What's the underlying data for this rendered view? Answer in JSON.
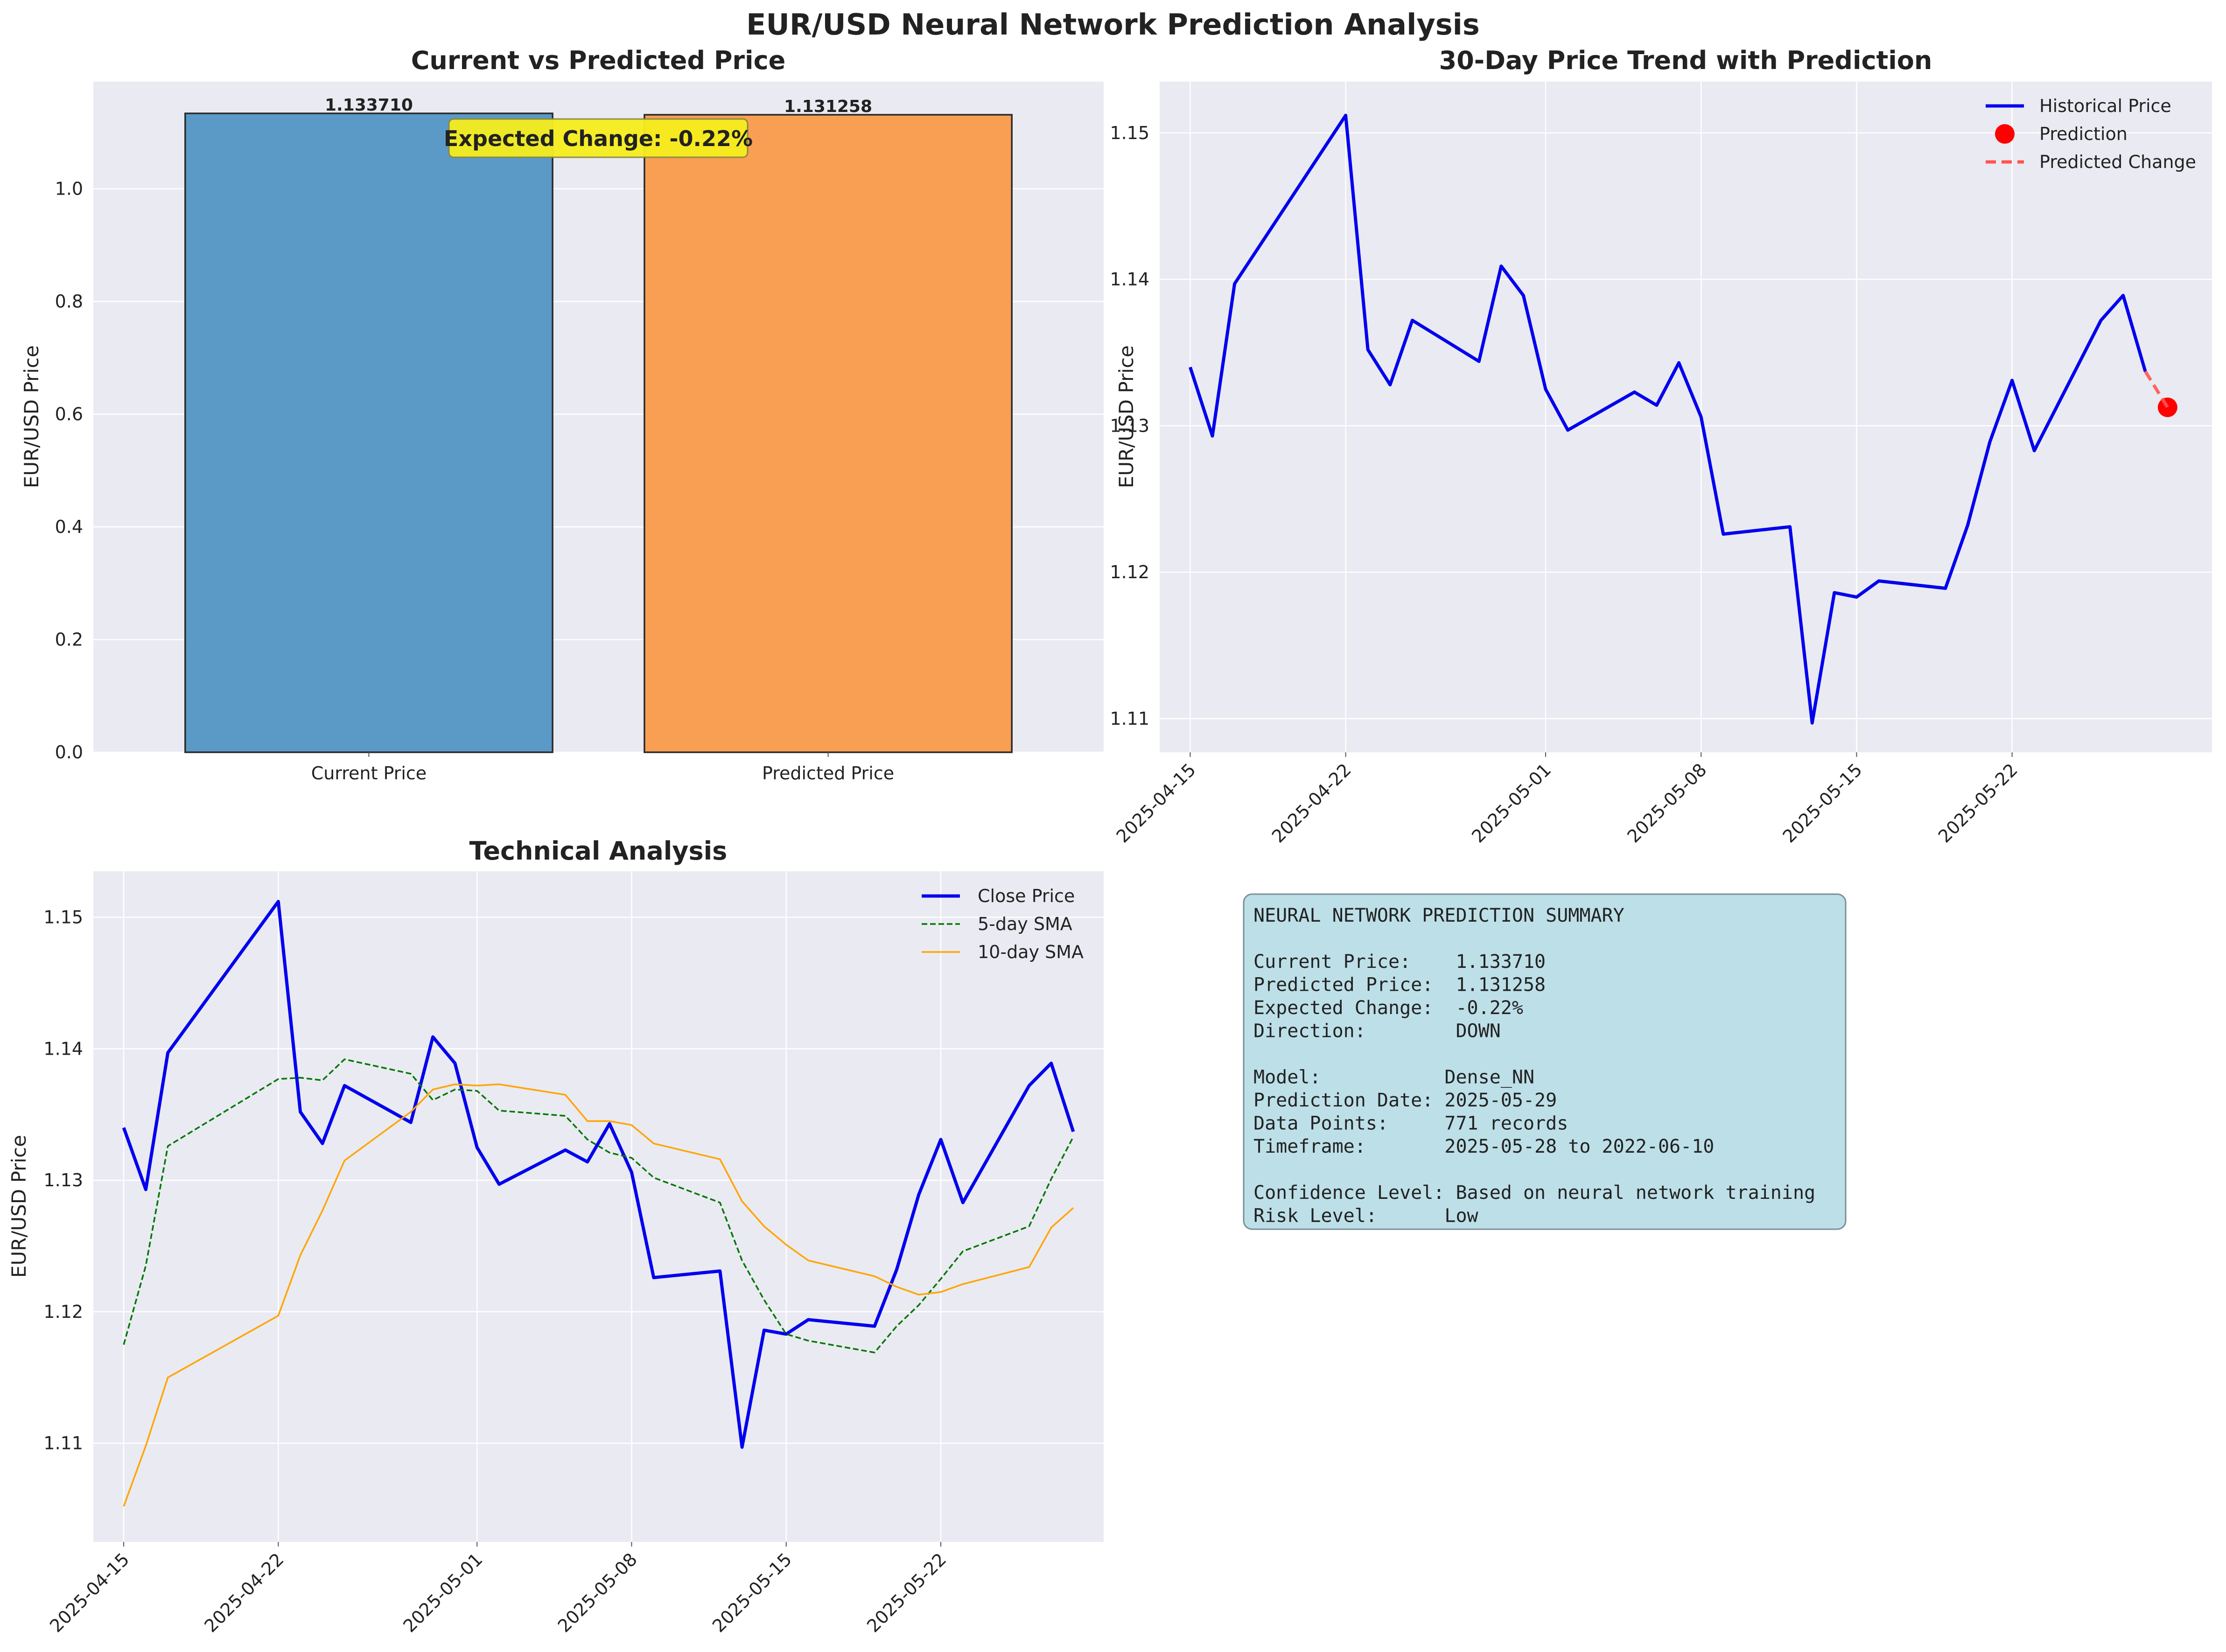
{
  "title": "EUR/USD Neural Network Prediction Analysis",
  "colors": {
    "current_bar": "#5b9ac6",
    "predicted_bar": "#f89f54",
    "historical": "#0000ee",
    "prediction": "#ff0000",
    "predicted_change": "#ff5555",
    "sma5": "#007700",
    "sma10": "#ffa500",
    "annotation_box": "#f6ee1e",
    "summary_box": "#bddfe8"
  },
  "chart_data": [
    {
      "type": "bar",
      "title": "Current vs Predicted Price",
      "ylabel": "EUR/USD Price",
      "xlabel": "",
      "categories": [
        "Current Price",
        "Predicted Price"
      ],
      "values": [
        1.13371,
        1.131258
      ],
      "value_labels": [
        "1.133710",
        "1.131258"
      ],
      "ylim": [
        0,
        1.19
      ],
      "yticks": [
        "0.0",
        "0.2",
        "0.4",
        "0.6",
        "0.8",
        "1.0"
      ],
      "annotation": "Expected Change: -0.22%",
      "grid": true
    },
    {
      "type": "line",
      "title": "30-Day Price Trend with Prediction",
      "ylabel": "EUR/USD Price",
      "xlabel": "",
      "xlim": [
        "2025-04-13T15:00",
        "2025-05-31T00:00"
      ],
      "ylim": [
        1.1077,
        1.1535
      ],
      "xticks": [
        "2025-04-15",
        "2025-04-22",
        "2025-05-01",
        "2025-05-08",
        "2025-05-15",
        "2025-05-22"
      ],
      "yticks": [
        "1.11",
        "1.12",
        "1.13",
        "1.14",
        "1.15"
      ],
      "legend": "top-right",
      "legend_entries": [
        "Historical Price",
        "Prediction",
        "Predicted Change"
      ],
      "series": [
        {
          "name": "Historical Price",
          "style": "solid",
          "x": [
            "2025-04-15",
            "2025-04-16",
            "2025-04-17",
            "2025-04-22",
            "2025-04-23",
            "2025-04-24",
            "2025-04-25",
            "2025-04-28",
            "2025-04-29",
            "2025-04-30",
            "2025-05-01",
            "2025-05-02",
            "2025-05-05",
            "2025-05-06",
            "2025-05-07",
            "2025-05-08",
            "2025-05-09",
            "2025-05-12",
            "2025-05-13",
            "2025-05-14",
            "2025-05-15",
            "2025-05-16",
            "2025-05-19",
            "2025-05-20",
            "2025-05-21",
            "2025-05-22",
            "2025-05-23",
            "2025-05-26",
            "2025-05-27",
            "2025-05-28"
          ],
          "y": [
            1.134,
            1.1293,
            1.1397,
            1.1512,
            1.1352,
            1.1328,
            1.1372,
            1.1344,
            1.1409,
            1.1389,
            1.1325,
            1.1297,
            1.1323,
            1.1314,
            1.1343,
            1.1306,
            1.1226,
            1.1231,
            1.1097,
            1.1186,
            1.1183,
            1.1194,
            1.1189,
            1.1232,
            1.1289,
            1.1331,
            1.1283,
            1.1372,
            1.1389,
            1.1337
          ]
        },
        {
          "name": "Prediction",
          "style": "marker",
          "x": [
            "2025-05-29"
          ],
          "y": [
            1.131258
          ]
        },
        {
          "name": "Predicted Change",
          "style": "dashed",
          "x": [
            "2025-05-28",
            "2025-05-29"
          ],
          "y": [
            1.13371,
            1.131258
          ]
        }
      ],
      "grid": true
    },
    {
      "type": "line",
      "title": "Technical Analysis",
      "ylabel": "EUR/USD Price",
      "xlabel": "",
      "xlim": [
        "2025-04-13T15:00",
        "2025-05-29T09:00"
      ],
      "ylim": [
        1.1025,
        1.1535
      ],
      "xticks": [
        "2025-04-15",
        "2025-04-22",
        "2025-05-01",
        "2025-05-08",
        "2025-05-15",
        "2025-05-22"
      ],
      "yticks": [
        "1.11",
        "1.12",
        "1.13",
        "1.14",
        "1.15"
      ],
      "legend": "top-right",
      "legend_entries": [
        "Close Price",
        "5-day SMA",
        "10-day SMA"
      ],
      "series": [
        {
          "name": "Close Price",
          "style": "solid",
          "x": [
            "2025-04-15",
            "2025-04-16",
            "2025-04-17",
            "2025-04-22",
            "2025-04-23",
            "2025-04-24",
            "2025-04-25",
            "2025-04-28",
            "2025-04-29",
            "2025-04-30",
            "2025-05-01",
            "2025-05-02",
            "2025-05-05",
            "2025-05-06",
            "2025-05-07",
            "2025-05-08",
            "2025-05-09",
            "2025-05-12",
            "2025-05-13",
            "2025-05-14",
            "2025-05-15",
            "2025-05-16",
            "2025-05-19",
            "2025-05-20",
            "2025-05-21",
            "2025-05-22",
            "2025-05-23",
            "2025-05-26",
            "2025-05-27",
            "2025-05-28"
          ],
          "y": [
            1.134,
            1.1293,
            1.1397,
            1.1512,
            1.1352,
            1.1328,
            1.1372,
            1.1344,
            1.1409,
            1.1389,
            1.1325,
            1.1297,
            1.1323,
            1.1314,
            1.1343,
            1.1306,
            1.1226,
            1.1231,
            1.1097,
            1.1186,
            1.1183,
            1.1194,
            1.1189,
            1.1232,
            1.1289,
            1.1331,
            1.1283,
            1.1372,
            1.1389,
            1.1337
          ]
        },
        {
          "name": "5-day SMA",
          "style": "dashed",
          "x": [
            "2025-04-15",
            "2025-04-16",
            "2025-04-17",
            "2025-04-22",
            "2025-04-23",
            "2025-04-24",
            "2025-04-25",
            "2025-04-28",
            "2025-04-29",
            "2025-04-30",
            "2025-05-01",
            "2025-05-02",
            "2025-05-05",
            "2025-05-06",
            "2025-05-07",
            "2025-05-08",
            "2025-05-09",
            "2025-05-12",
            "2025-05-13",
            "2025-05-14",
            "2025-05-15",
            "2025-05-16",
            "2025-05-19",
            "2025-05-20",
            "2025-05-21",
            "2025-05-22",
            "2025-05-23",
            "2025-05-26",
            "2025-05-27",
            "2025-05-28"
          ],
          "y": [
            1.1175,
            1.1235,
            1.1326,
            1.1377,
            1.1378,
            1.1376,
            1.1392,
            1.1381,
            1.1361,
            1.1369,
            1.1368,
            1.1353,
            1.1349,
            1.1331,
            1.1321,
            1.1317,
            1.1302,
            1.1283,
            1.1239,
            1.1209,
            1.1183,
            1.1178,
            1.1169,
            1.1189,
            1.1205,
            1.1225,
            1.1246,
            1.1265,
            1.1301,
            1.1333
          ]
        },
        {
          "name": "10-day SMA",
          "style": "solid",
          "x": [
            "2025-04-15",
            "2025-04-16",
            "2025-04-17",
            "2025-04-22",
            "2025-04-23",
            "2025-04-24",
            "2025-04-25",
            "2025-04-28",
            "2025-04-29",
            "2025-04-30",
            "2025-05-01",
            "2025-05-02",
            "2025-05-05",
            "2025-05-06",
            "2025-05-07",
            "2025-05-08",
            "2025-05-09",
            "2025-05-12",
            "2025-05-13",
            "2025-05-14",
            "2025-05-15",
            "2025-05-16",
            "2025-05-19",
            "2025-05-20",
            "2025-05-21",
            "2025-05-22",
            "2025-05-23",
            "2025-05-26",
            "2025-05-27",
            "2025-05-28"
          ],
          "y": [
            1.1052,
            1.1098,
            1.115,
            1.1197,
            1.1243,
            1.1277,
            1.1315,
            1.1352,
            1.1369,
            1.1373,
            1.1372,
            1.1373,
            1.1365,
            1.1345,
            1.1345,
            1.1342,
            1.1328,
            1.1316,
            1.1284,
            1.1265,
            1.1251,
            1.1239,
            1.1227,
            1.1219,
            1.1213,
            1.1215,
            1.1221,
            1.1234,
            1.1264,
            1.1279
          ]
        }
      ],
      "grid": true
    }
  ],
  "summary": {
    "lines": [
      "NEURAL NETWORK PREDICTION SUMMARY",
      "",
      "Current Price:    1.133710",
      "Predicted Price:  1.131258",
      "Expected Change:  -0.22%",
      "Direction:        DOWN",
      "",
      "Model:           Dense_NN",
      "Prediction Date: 2025-05-29",
      "Data Points:     771 records",
      "Timeframe:       2025-05-28 to 2022-06-10",
      "",
      "Confidence Level: Based on neural network training",
      "Risk Level:      Low"
    ]
  }
}
